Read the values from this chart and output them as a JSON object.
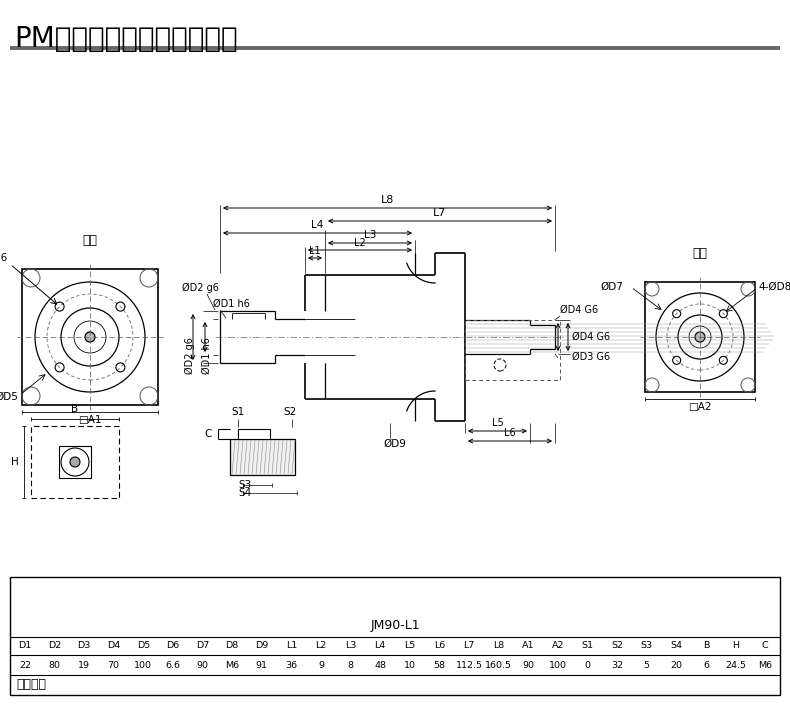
{
  "title": "PM系列行星减速机标准尺寸",
  "bg_color": "#ffffff",
  "title_fontsize": 20,
  "table_title": "JM90-L1",
  "col_headers": [
    "D1",
    "D2",
    "D3",
    "D4",
    "D5",
    "D6",
    "D7",
    "D8",
    "D9",
    "L1",
    "L2",
    "L3",
    "L4",
    "L5",
    "L6",
    "L7",
    "L8",
    "A1",
    "A2",
    "S1",
    "S2",
    "S3",
    "S4",
    "B",
    "H",
    "C"
  ],
  "col_values": [
    "22",
    "80",
    "19",
    "70",
    "100",
    "6.6",
    "90",
    "M6",
    "91",
    "36",
    "9",
    "8",
    "48",
    "10",
    "58",
    "112.5",
    "160.5",
    "90",
    "100",
    "0",
    "32",
    "5",
    "20",
    "6",
    "24.5",
    "M6"
  ],
  "footer_text": "客户定制",
  "label_shuchu": "输出",
  "label_shuru": "输入"
}
